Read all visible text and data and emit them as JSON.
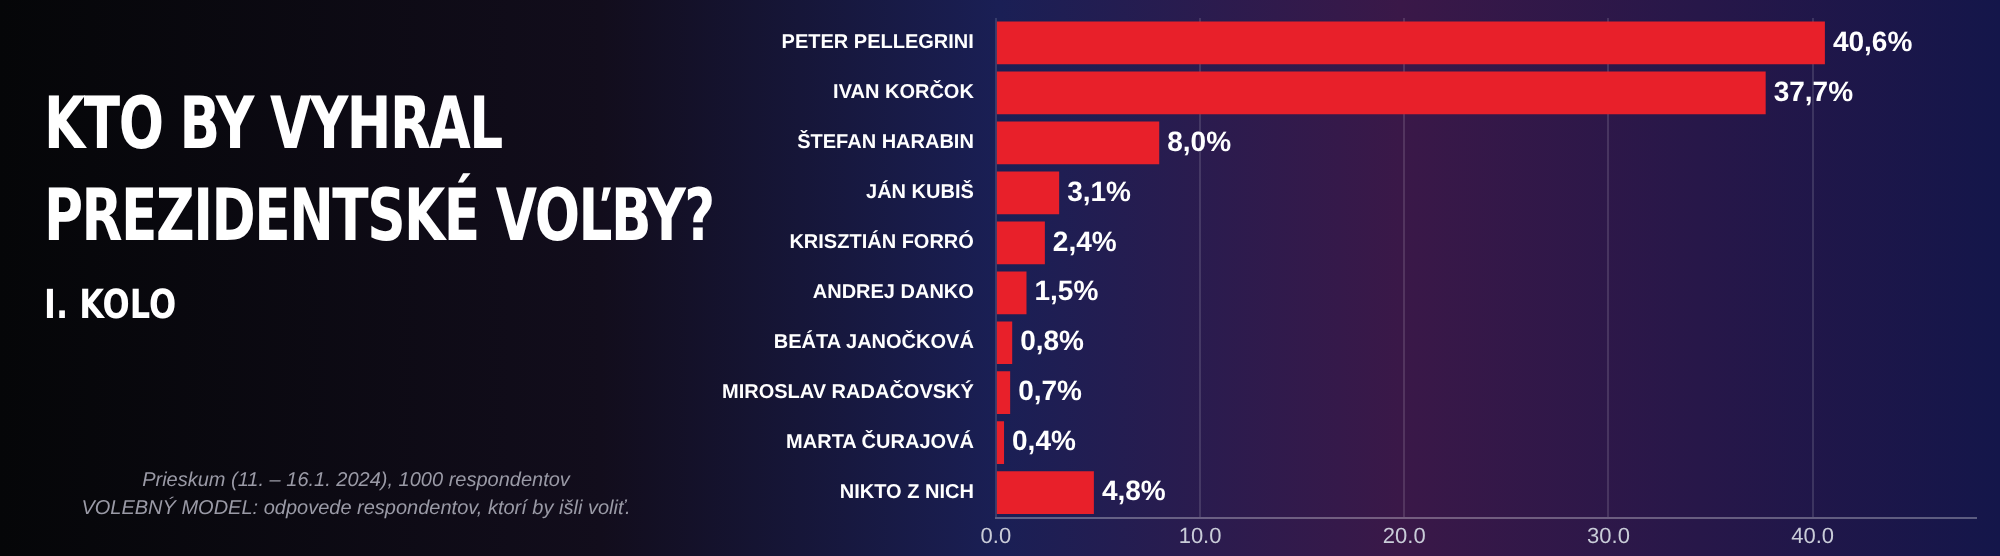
{
  "chart_data": {
    "type": "bar",
    "orientation": "horizontal",
    "title": "KTO BY VYHRAL PREZIDENTSKÉ VOĽBY?",
    "subtitle": "I. KOLO",
    "categories": [
      "PETER PELLEGRINI",
      "IVAN KORČOK",
      "ŠTEFAN HARABIN",
      "JÁN KUBIŠ",
      "KRISZTIÁN FORRÓ",
      "ANDREJ DANKO",
      "BEÁTA JANOČKOVÁ",
      "MIROSLAV RADAČOVSKÝ",
      "MARTA ČURAJOVÁ",
      "NIKTO Z NICH"
    ],
    "values": [
      40.6,
      37.7,
      8.0,
      3.1,
      2.4,
      1.5,
      0.8,
      0.7,
      0.4,
      4.8
    ],
    "value_labels": [
      "40,6%",
      "37,7%",
      "8,0%",
      "3,1%",
      "2,4%",
      "1,5%",
      "0,8%",
      "0,7%",
      "0,4%",
      "4,8%"
    ],
    "color": "#e8202a",
    "xlim": [
      0,
      48
    ],
    "xticks": [
      {
        "value": 0,
        "label": "0.0"
      },
      {
        "value": 10,
        "label": "10.0"
      },
      {
        "value": 20,
        "label": "20.0"
      },
      {
        "value": 30,
        "label": "30.0"
      },
      {
        "value": 40,
        "label": "40.0"
      }
    ],
    "grid": "x",
    "annotations": [
      "Prieskum (11. – 16.1. 2024), 1000 respondentov",
      "VOLEBNÝ MODEL: odpovede respondentov, ktorí by išli voliť."
    ]
  }
}
